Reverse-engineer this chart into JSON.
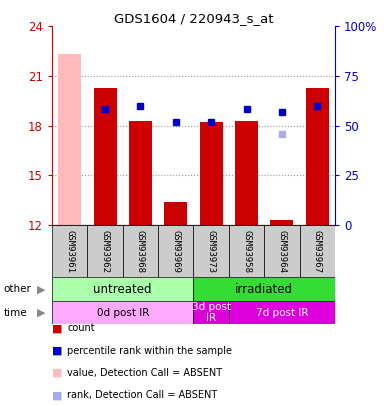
{
  "title": "GDS1604 / 220943_s_at",
  "samples": [
    "GSM93961",
    "GSM93962",
    "GSM93968",
    "GSM93969",
    "GSM93973",
    "GSM93958",
    "GSM93964",
    "GSM93967"
  ],
  "ylim_left": [
    12,
    24
  ],
  "ylim_right": [
    0,
    100
  ],
  "yticks_left": [
    12,
    15,
    18,
    21,
    24
  ],
  "yticks_right": [
    0,
    25,
    50,
    75,
    100
  ],
  "yticklabels_right": [
    "0",
    "25",
    "50",
    "75",
    "100%"
  ],
  "bar_tops_red": [
    22.3,
    20.3,
    18.3,
    13.4,
    18.2,
    18.3,
    12.3,
    20.3
  ],
  "bar_color_red": "#cc0000",
  "bar_color_pink": "#ffbbbb",
  "absent_bar_idx": [
    0
  ],
  "blue_marker_x": [
    1,
    2,
    3,
    4,
    5,
    6,
    7
  ],
  "blue_marker_y": [
    19.0,
    19.2,
    18.2,
    18.2,
    19.0,
    18.8,
    19.2
  ],
  "blue_marker_color": "#0000cc",
  "absent_rank_x": [
    6
  ],
  "absent_rank_y": [
    17.5
  ],
  "absent_rank_color": "#aaaaee",
  "group_other": [
    {
      "label": "untreated",
      "xstart": 0,
      "xend": 4,
      "color": "#aaffaa"
    },
    {
      "label": "irradiated",
      "xstart": 4,
      "xend": 8,
      "color": "#33dd33"
    }
  ],
  "group_time": [
    {
      "label": "0d post IR",
      "xstart": 0,
      "xend": 4,
      "color": "#ffaaff"
    },
    {
      "label": "3d post\nIR",
      "xstart": 4,
      "xend": 5,
      "color": "#dd00dd"
    },
    {
      "label": "7d post IR",
      "xstart": 5,
      "xend": 8,
      "color": "#dd00dd"
    }
  ],
  "legend_items": [
    {
      "color": "#cc0000",
      "label": "count"
    },
    {
      "color": "#0000cc",
      "label": "percentile rank within the sample"
    },
    {
      "color": "#ffbbbb",
      "label": "value, Detection Call = ABSENT"
    },
    {
      "color": "#aaaaee",
      "label": "rank, Detection Call = ABSENT"
    }
  ],
  "dotted_line_color": "#999999",
  "bg_color": "#ffffff",
  "left_axis_color": "#cc0000",
  "right_axis_color": "#0000cc",
  "bar_bottom": 12
}
